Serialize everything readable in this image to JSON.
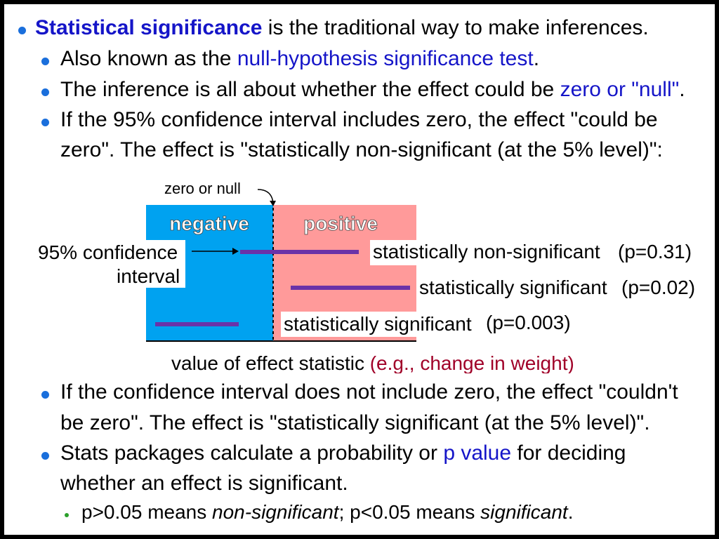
{
  "bullets": {
    "b1": {
      "term": "Statistical significance",
      "rest": " is the traditional way to make inferences."
    },
    "b2": {
      "pre": "Also known as the ",
      "link": "null-hypothesis significance test",
      "post": "."
    },
    "b3": {
      "pre": "The inference is all about whether the effect could be ",
      "link": "zero or \"null\"",
      "post": "."
    },
    "b4": {
      "line1": "If the 95% confidence interval includes zero, the effect \"could be",
      "line2": "zero\". The effect is \"statistically non-significant (at the 5% level)\":"
    },
    "b5": {
      "line1": "If the confidence interval does not include zero, the effect \"couldn't",
      "line2": "be zero\". The effect is \"statistically significant (at the 5% level)\"."
    },
    "b6": {
      "pre": "Stats packages calculate a probability or ",
      "link": "p value",
      "post": " for deciding",
      "line2": "whether an effect is significant."
    },
    "sub": {
      "p1": "p>0.05 means ",
      "i1": "non-significant",
      "p2": "; p<0.05 means ",
      "i2": "significant",
      "p3": "."
    }
  },
  "diagram": {
    "zero_label": "zero or null",
    "negative_label": "negative",
    "positive_label": "positive",
    "ci_label_line1": "95% confidence",
    "ci_label_line2": "interval",
    "intervals": [
      {
        "label": "statistically non-significant",
        "p": "(p=0.31)"
      },
      {
        "label": "statistically significant",
        "p": "(p=0.02)"
      },
      {
        "label": "statistically significant",
        "p": "(p=0.003)"
      }
    ],
    "axis_label": "value of effect statistic ",
    "axis_example": "(e.g., change in weight)",
    "colors": {
      "negative": "#00a2f0",
      "positive": "#ff9a9a",
      "interval": "#6a32a8",
      "bullet": "#1a6fdc"
    }
  }
}
